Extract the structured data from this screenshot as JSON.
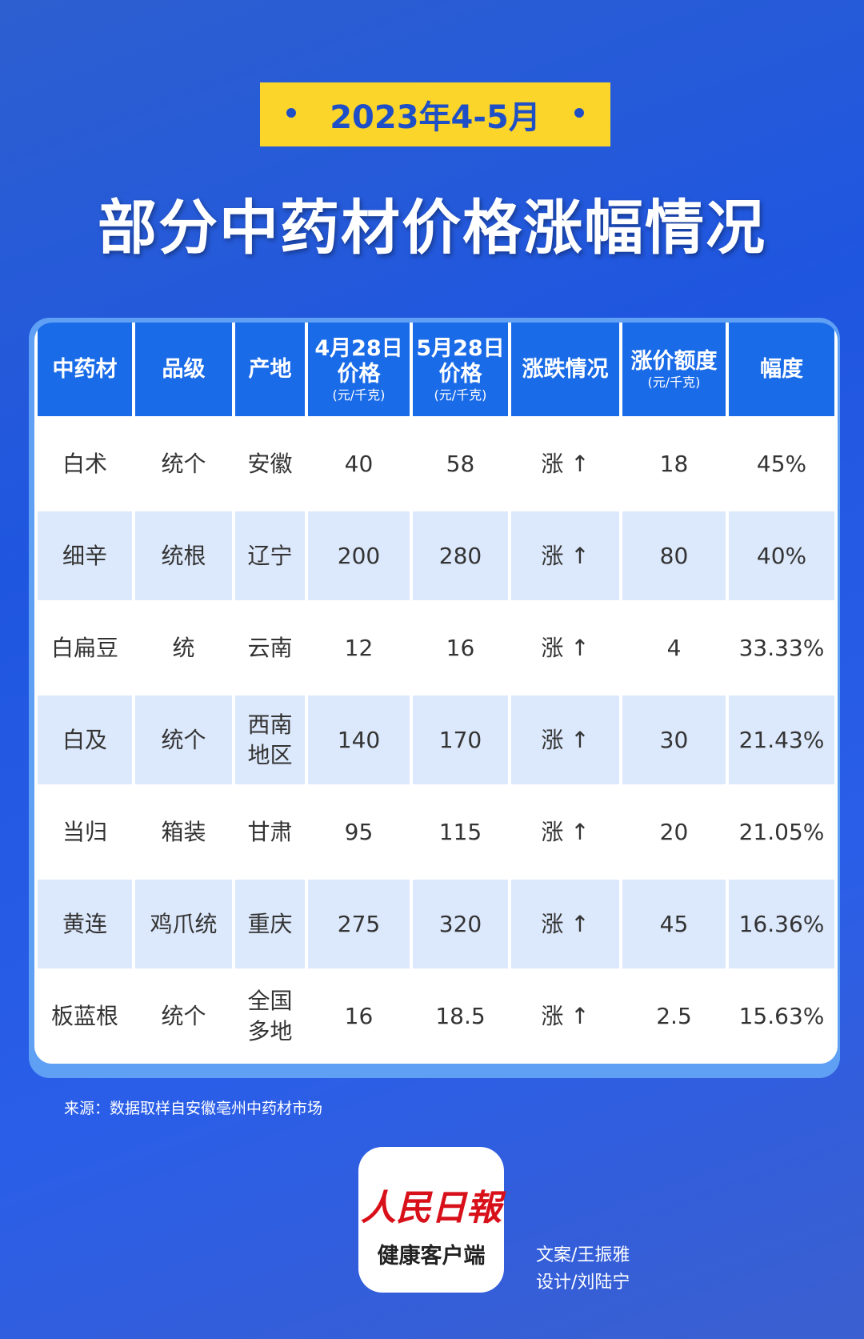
{
  "header": {
    "badge": "2023年4-5月",
    "title": "部分中药材价格涨幅情况"
  },
  "table": {
    "headers": [
      {
        "lines": [
          "中药材"
        ]
      },
      {
        "lines": [
          "品级"
        ]
      },
      {
        "lines": [
          "产地"
        ]
      },
      {
        "lines": [
          "4月28日",
          "价格"
        ],
        "unit": "(元/千克)"
      },
      {
        "lines": [
          "5月28日",
          "价格"
        ],
        "unit": "(元/千克)"
      },
      {
        "lines": [
          "涨跌情况"
        ]
      },
      {
        "lines": [
          "涨价额度"
        ],
        "unit": "(元/千克)"
      },
      {
        "lines": [
          "幅度"
        ]
      }
    ],
    "rows": [
      [
        "白术",
        "统个",
        "安徽",
        "40",
        "58",
        "涨 ↑",
        "18",
        "45%"
      ],
      [
        "细辛",
        "统根",
        "辽宁",
        "200",
        "280",
        "涨 ↑",
        "80",
        "40%"
      ],
      [
        "白扁豆",
        "统",
        "云南",
        "12",
        "16",
        "涨 ↑",
        "4",
        "33.33%"
      ],
      [
        "白及",
        "统个",
        "西南地区",
        "140",
        "170",
        "涨 ↑",
        "30",
        "21.43%"
      ],
      [
        "当归",
        "箱装",
        "甘肃",
        "95",
        "115",
        "涨 ↑",
        "20",
        "21.05%"
      ],
      [
        "黄连",
        "鸡爪统",
        "重庆",
        "275",
        "320",
        "涨 ↑",
        "45",
        "16.36%"
      ],
      [
        "板蓝根",
        "统个",
        "全国多地",
        "16",
        "18.5",
        "涨 ↑",
        "2.5",
        "15.63%"
      ]
    ]
  },
  "source": "来源：数据取样自安徽亳州中药材市场",
  "logo": {
    "brand": "人民日報",
    "sub": "健康客户端"
  },
  "credits": [
    "文案/王振雅",
    "设计/刘陆宁"
  ]
}
